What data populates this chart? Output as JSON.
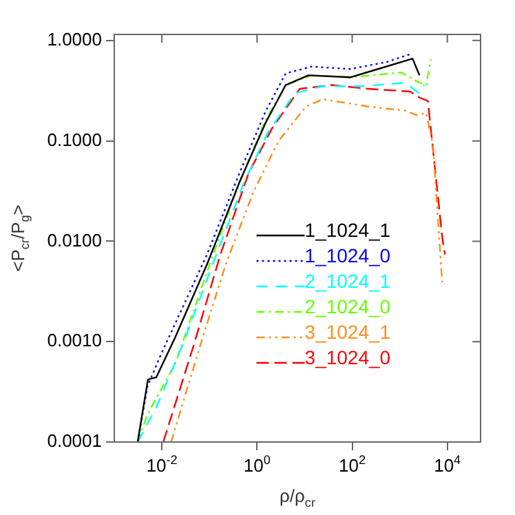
{
  "chart_data": {
    "type": "line",
    "xlabel": "ρ/ρ$_{cr}$",
    "ylabel": "<P$_{cr}$/P$_{g}$>",
    "log": "xy",
    "grid": false,
    "legend": "bottom right",
    "marker": "none",
    "xlim": [
      0.001,
      50000
    ],
    "xticks": [
      {
        "value": 0.01,
        "label": "10$^{-2}$"
      },
      {
        "value": 1,
        "label": "10$^{0}$"
      },
      {
        "value": 100,
        "label": "10$^{2}$"
      },
      {
        "value": 10000,
        "label": "10$^{4}$"
      }
    ],
    "ylim": [
      0.0001,
      1.15
    ],
    "yticks": [
      {
        "value": 0.0001,
        "label": "0.0001"
      },
      {
        "value": 0.001,
        "label": "0.0010"
      },
      {
        "value": 0.01,
        "label": "0.0100"
      },
      {
        "value": 0.1,
        "label": "0.1000"
      },
      {
        "value": 1,
        "label": "1.0000"
      }
    ],
    "series": [
      {
        "name": "1_1024_1",
        "color": "#000000",
        "line_style": "solid",
        "x": [
          0.0031,
          0.0051,
          0.0076,
          0.019,
          0.089,
          0.43,
          1.5,
          4,
          12,
          91,
          350,
          1860,
          2600
        ],
        "values": [
          0.0001,
          0.00042,
          0.00044,
          0.0011,
          0.0059,
          0.039,
          0.15,
          0.36,
          0.45,
          0.43,
          0.52,
          0.66,
          0.45
        ]
      },
      {
        "name": "1_1024_0",
        "color": "#0000ff",
        "line_style": "dotted",
        "x": [
          0.0031,
          0.005,
          0.0095,
          0.089,
          0.43,
          1.5,
          4,
          14,
          91,
          530,
          1650
        ],
        "values": [
          0.0001,
          0.00036,
          0.00074,
          0.0074,
          0.048,
          0.195,
          0.47,
          0.55,
          0.52,
          0.61,
          0.73
        ]
      },
      {
        "name": "2_1024_1",
        "color": "#00ffff",
        "line_style": "dashed",
        "x": [
          0.0031,
          0.0076,
          0.029,
          0.14,
          0.54,
          1.67,
          6.3,
          24,
          170,
          1300,
          2500,
          3270
        ],
        "values": [
          0.0001,
          0.00022,
          0.001,
          0.0074,
          0.039,
          0.12,
          0.3,
          0.35,
          0.35,
          0.38,
          0.3,
          0.36
        ]
      },
      {
        "name": "2_1024_0",
        "color": "#66ff00",
        "line_style": "dashdot",
        "x": [
          0.0031,
          0.005,
          0.019,
          0.11,
          0.43,
          1.5,
          4,
          14,
          91,
          1060,
          2600,
          3600,
          4500
        ],
        "values": [
          0.0001,
          0.00019,
          0.0006,
          0.0066,
          0.039,
          0.16,
          0.36,
          0.45,
          0.43,
          0.48,
          0.38,
          0.36,
          0.65
        ]
      },
      {
        "name": "3_1024_1",
        "color": "#ff8c1a",
        "line_style": "dashdotdot",
        "x": [
          0.0156,
          0.072,
          0.22,
          0.84,
          2.8,
          10.7,
          24,
          220,
          1300,
          2300,
          3600,
          5000,
          7800
        ],
        "values": [
          0.0001,
          0.0011,
          0.0059,
          0.031,
          0.099,
          0.22,
          0.26,
          0.22,
          0.2,
          0.18,
          0.19,
          0.09,
          0.0039
        ]
      },
      {
        "name": "3_1024_0",
        "color": "#ff0000",
        "line_style": "longdash",
        "x": [
          0.0107,
          0.046,
          0.17,
          0.67,
          2.1,
          7.9,
          37,
          220,
          1650,
          2600,
          3900,
          7800,
          8900
        ],
        "values": [
          0.0001,
          0.0009,
          0.0074,
          0.048,
          0.135,
          0.33,
          0.36,
          0.33,
          0.31,
          0.27,
          0.25,
          0.011,
          0.0074
        ]
      }
    ]
  }
}
